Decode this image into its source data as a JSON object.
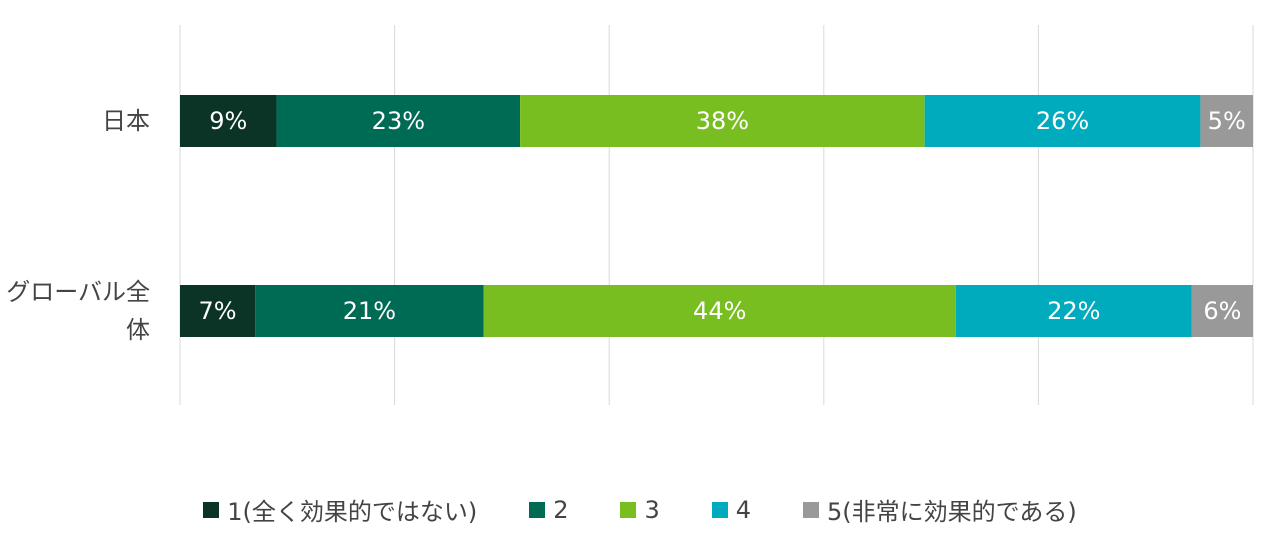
{
  "chart_data": {
    "type": "stacked-bar-horizontal",
    "categories": [
      "日本",
      "グローバル全体"
    ],
    "xlim": [
      0,
      100
    ],
    "xticks": [
      0,
      20,
      40,
      60,
      80,
      100
    ],
    "grid": true,
    "series": [
      {
        "name": "1(全く効果的ではない)",
        "color": "#0b3326",
        "values": [
          9.0,
          7.0
        ],
        "value_labels": [
          "9%",
          "7%"
        ]
      },
      {
        "name": "2",
        "color": "#006b54",
        "values": [
          22.7,
          21.3
        ],
        "value_labels": [
          "23%",
          "21%"
        ]
      },
      {
        "name": "3",
        "color": "#78be20",
        "values": [
          37.7,
          44.0
        ],
        "value_labels": [
          "38%",
          "44%"
        ]
      },
      {
        "name": "4",
        "color": "#00abbd",
        "values": [
          25.7,
          22.0
        ],
        "value_labels": [
          "26%",
          "22%"
        ]
      },
      {
        "name": "5(非常に効果的である)",
        "color": "#999999",
        "values": [
          4.9,
          5.7
        ],
        "value_labels": [
          "5%",
          "6%"
        ]
      }
    ],
    "legend": "bottom"
  }
}
